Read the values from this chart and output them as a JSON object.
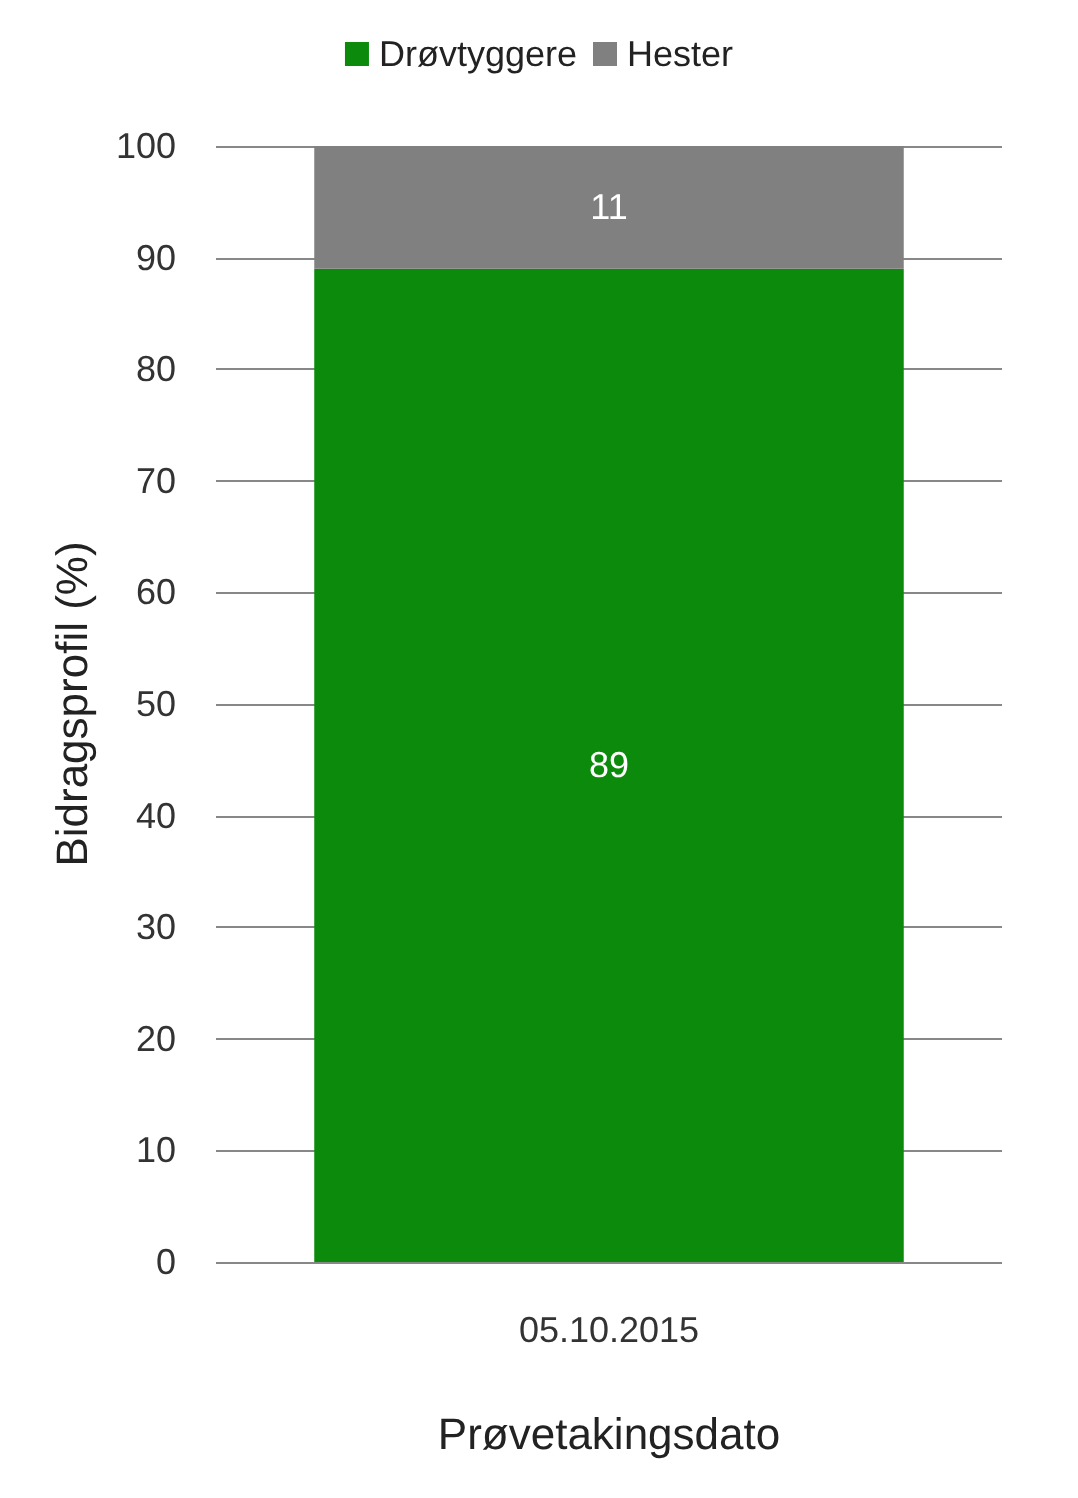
{
  "chart_data": {
    "type": "bar",
    "stacked": true,
    "categories": [
      "05.10.2015"
    ],
    "series": [
      {
        "name": "Drøvtyggere",
        "color": "#0b8a0b",
        "values": [
          89
        ]
      },
      {
        "name": "Hester",
        "color": "#808080",
        "values": [
          11
        ]
      }
    ],
    "data_labels": true,
    "ylim": [
      0,
      100
    ],
    "yticks": [
      0,
      10,
      20,
      30,
      40,
      50,
      60,
      70,
      80,
      90,
      100
    ],
    "grid": "y",
    "legend": "top",
    "xlabel": "Prøvetakingsdato",
    "ylabel": "Bidragsprofil (%)"
  }
}
